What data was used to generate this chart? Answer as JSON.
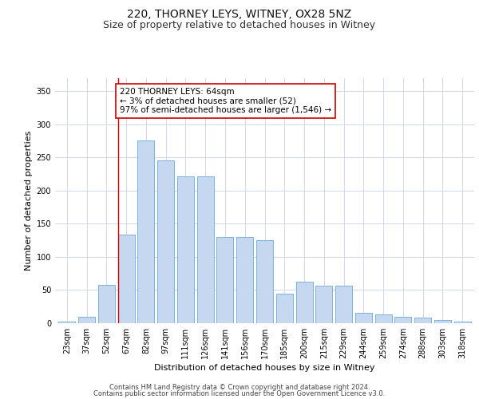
{
  "title1": "220, THORNEY LEYS, WITNEY, OX28 5NZ",
  "title2": "Size of property relative to detached houses in Witney",
  "xlabel": "Distribution of detached houses by size in Witney",
  "ylabel": "Number of detached properties",
  "annotation_line1": "220 THORNEY LEYS: 64sqm",
  "annotation_line2": "← 3% of detached houses are smaller (52)",
  "annotation_line3": "97% of semi-detached houses are larger (1,546) →",
  "footnote1": "Contains HM Land Registry data © Crown copyright and database right 2024.",
  "footnote2": "Contains public sector information licensed under the Open Government Licence v3.0.",
  "categories": [
    "23sqm",
    "37sqm",
    "52sqm",
    "67sqm",
    "82sqm",
    "97sqm",
    "111sqm",
    "126sqm",
    "141sqm",
    "156sqm",
    "170sqm",
    "185sqm",
    "200sqm",
    "215sqm",
    "229sqm",
    "244sqm",
    "259sqm",
    "274sqm",
    "288sqm",
    "303sqm",
    "318sqm"
  ],
  "values": [
    2,
    10,
    58,
    133,
    275,
    245,
    222,
    222,
    130,
    130,
    125,
    45,
    62,
    57,
    57,
    16,
    13,
    10,
    8,
    5,
    2
  ],
  "bar_color": "#c5d8f0",
  "bar_edge_color": "#6aaad4",
  "red_line_x": 3.0,
  "ylim": [
    0,
    370
  ],
  "yticks": [
    0,
    50,
    100,
    150,
    200,
    250,
    300,
    350
  ],
  "background_color": "#ffffff",
  "grid_color": "#d0d8e8",
  "annotation_box_color": "#ffffff",
  "annotation_box_edge": "#cc0000",
  "red_line_color": "#cc0000",
  "title_fontsize": 10,
  "subtitle_fontsize": 9,
  "tick_fontsize": 7,
  "ylabel_fontsize": 8,
  "xlabel_fontsize": 8,
  "annot_fontsize": 7.5
}
